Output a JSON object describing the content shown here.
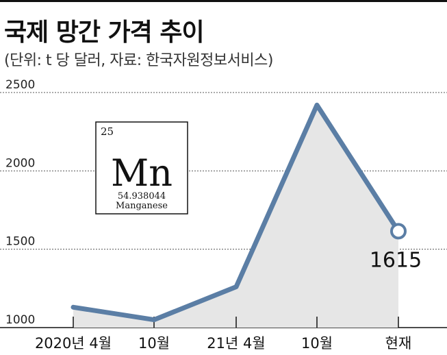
{
  "header": {
    "title": "국제 망간 가격 추이",
    "subtitle": "(단위: t 당 달러, 자료: 한국자원정보서비스)"
  },
  "chart_data": {
    "type": "area",
    "title": "국제 망간 가격 추이",
    "subtitle": "(단위: t 당 달러, 자료: 한국자원정보서비스)",
    "categories": [
      "2020년 4월",
      "10월",
      "21년 4월",
      "10월",
      "현재"
    ],
    "values": [
      1130,
      1050,
      1260,
      2420,
      1615
    ],
    "ylim": [
      1000,
      2500
    ],
    "yticks": [
      1000,
      1500,
      2000,
      2500
    ],
    "grid": true,
    "value_labels": [
      {
        "index": 4,
        "text": "1615"
      }
    ],
    "colors": {
      "line": "#5b7ea5",
      "area": "#e6e6e6",
      "grid": "#555555",
      "marker_fill": "#ffffff"
    }
  },
  "element_card": {
    "number": "25",
    "symbol": "Mn",
    "mass": "54.938044",
    "name": "Manganese"
  }
}
